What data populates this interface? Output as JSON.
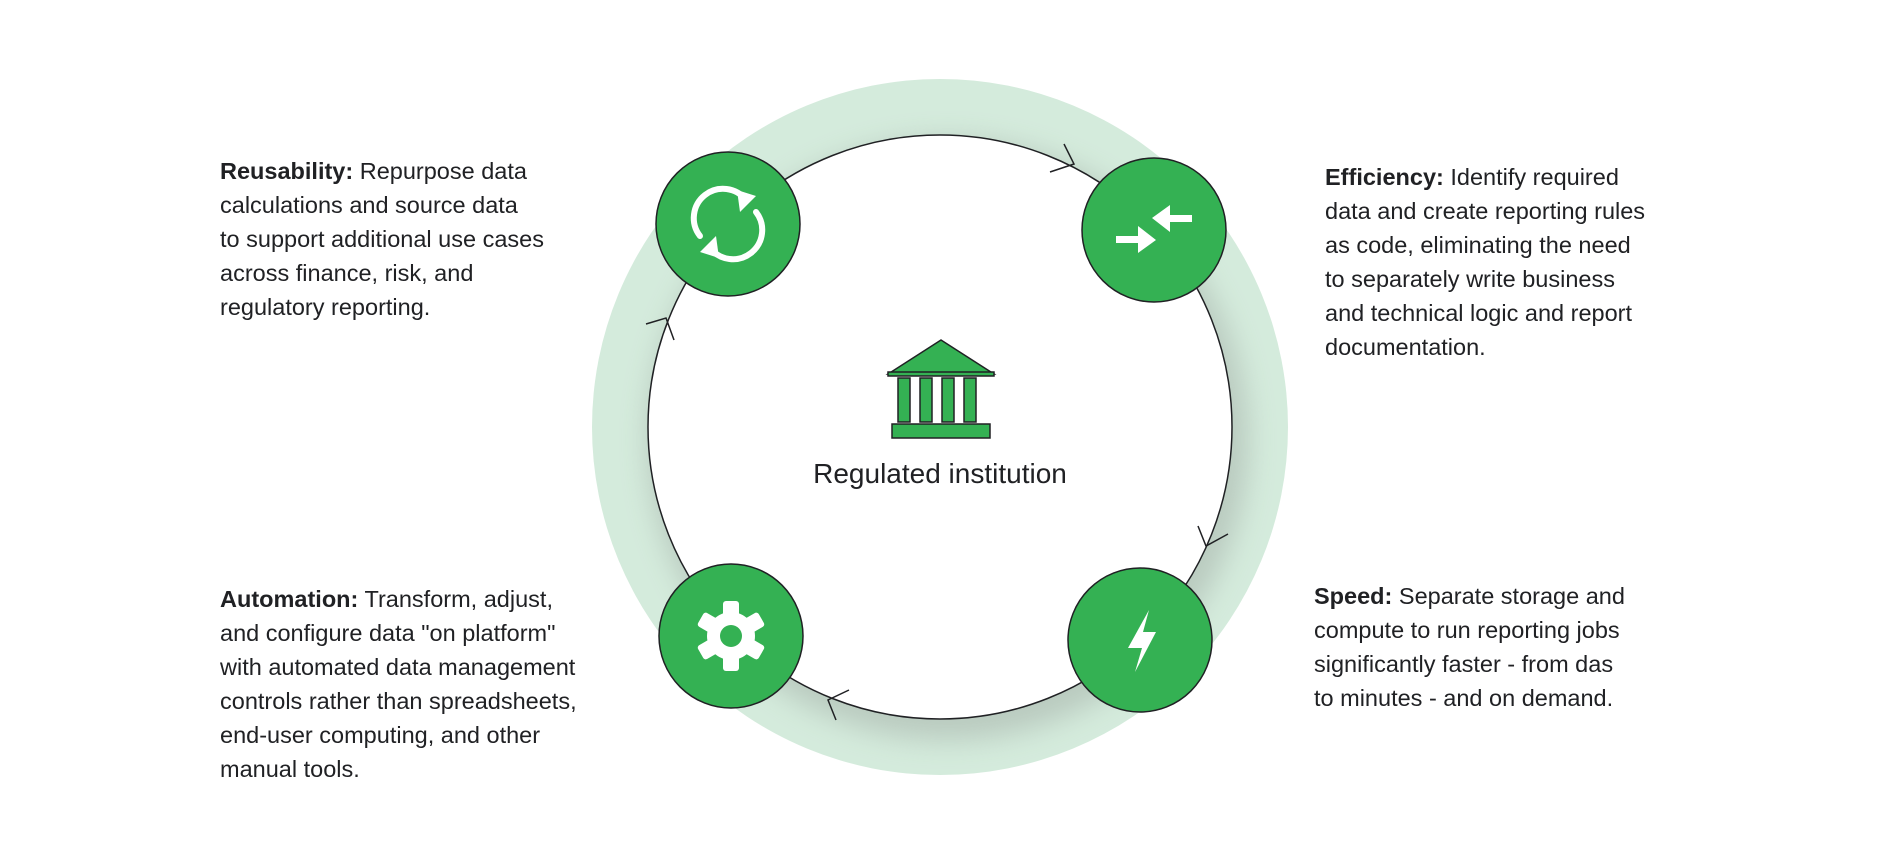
{
  "center": {
    "label": "Regulated institution",
    "icon": "bank-icon"
  },
  "colors": {
    "node_fill": "#34b153",
    "ring": "#d3ebdb",
    "arrow": "#202124",
    "text": "#202124"
  },
  "benefits": [
    {
      "id": "reusability",
      "icon": "sync-icon",
      "label": "Reusability:",
      "lines": [
        " Repurpose data",
        "calculations and source data",
        "to support additional use cases",
        "across finance, risk, and",
        "regulatory reporting."
      ]
    },
    {
      "id": "efficiency",
      "icon": "compress-arrows-icon",
      "label": "Efficiency:",
      "lines": [
        " Identify required",
        "data and create reporting rules",
        "as code, eliminating the need",
        "to separately write business",
        "and technical logic and report",
        "documentation."
      ]
    },
    {
      "id": "automation",
      "icon": "gear-icon",
      "label": "Automation:",
      "lines": [
        " Transform, adjust,",
        "and configure data \"on platform\"",
        "with automated data management",
        "controls rather than spreadsheets,",
        "end-user computing, and other",
        "manual tools."
      ]
    },
    {
      "id": "speed",
      "icon": "lightning-bolt-icon",
      "label": "Speed:",
      "lines": [
        " Separate storage and",
        "compute to run reporting jobs",
        "significantly faster - from das",
        "to minutes - and on demand."
      ]
    }
  ]
}
